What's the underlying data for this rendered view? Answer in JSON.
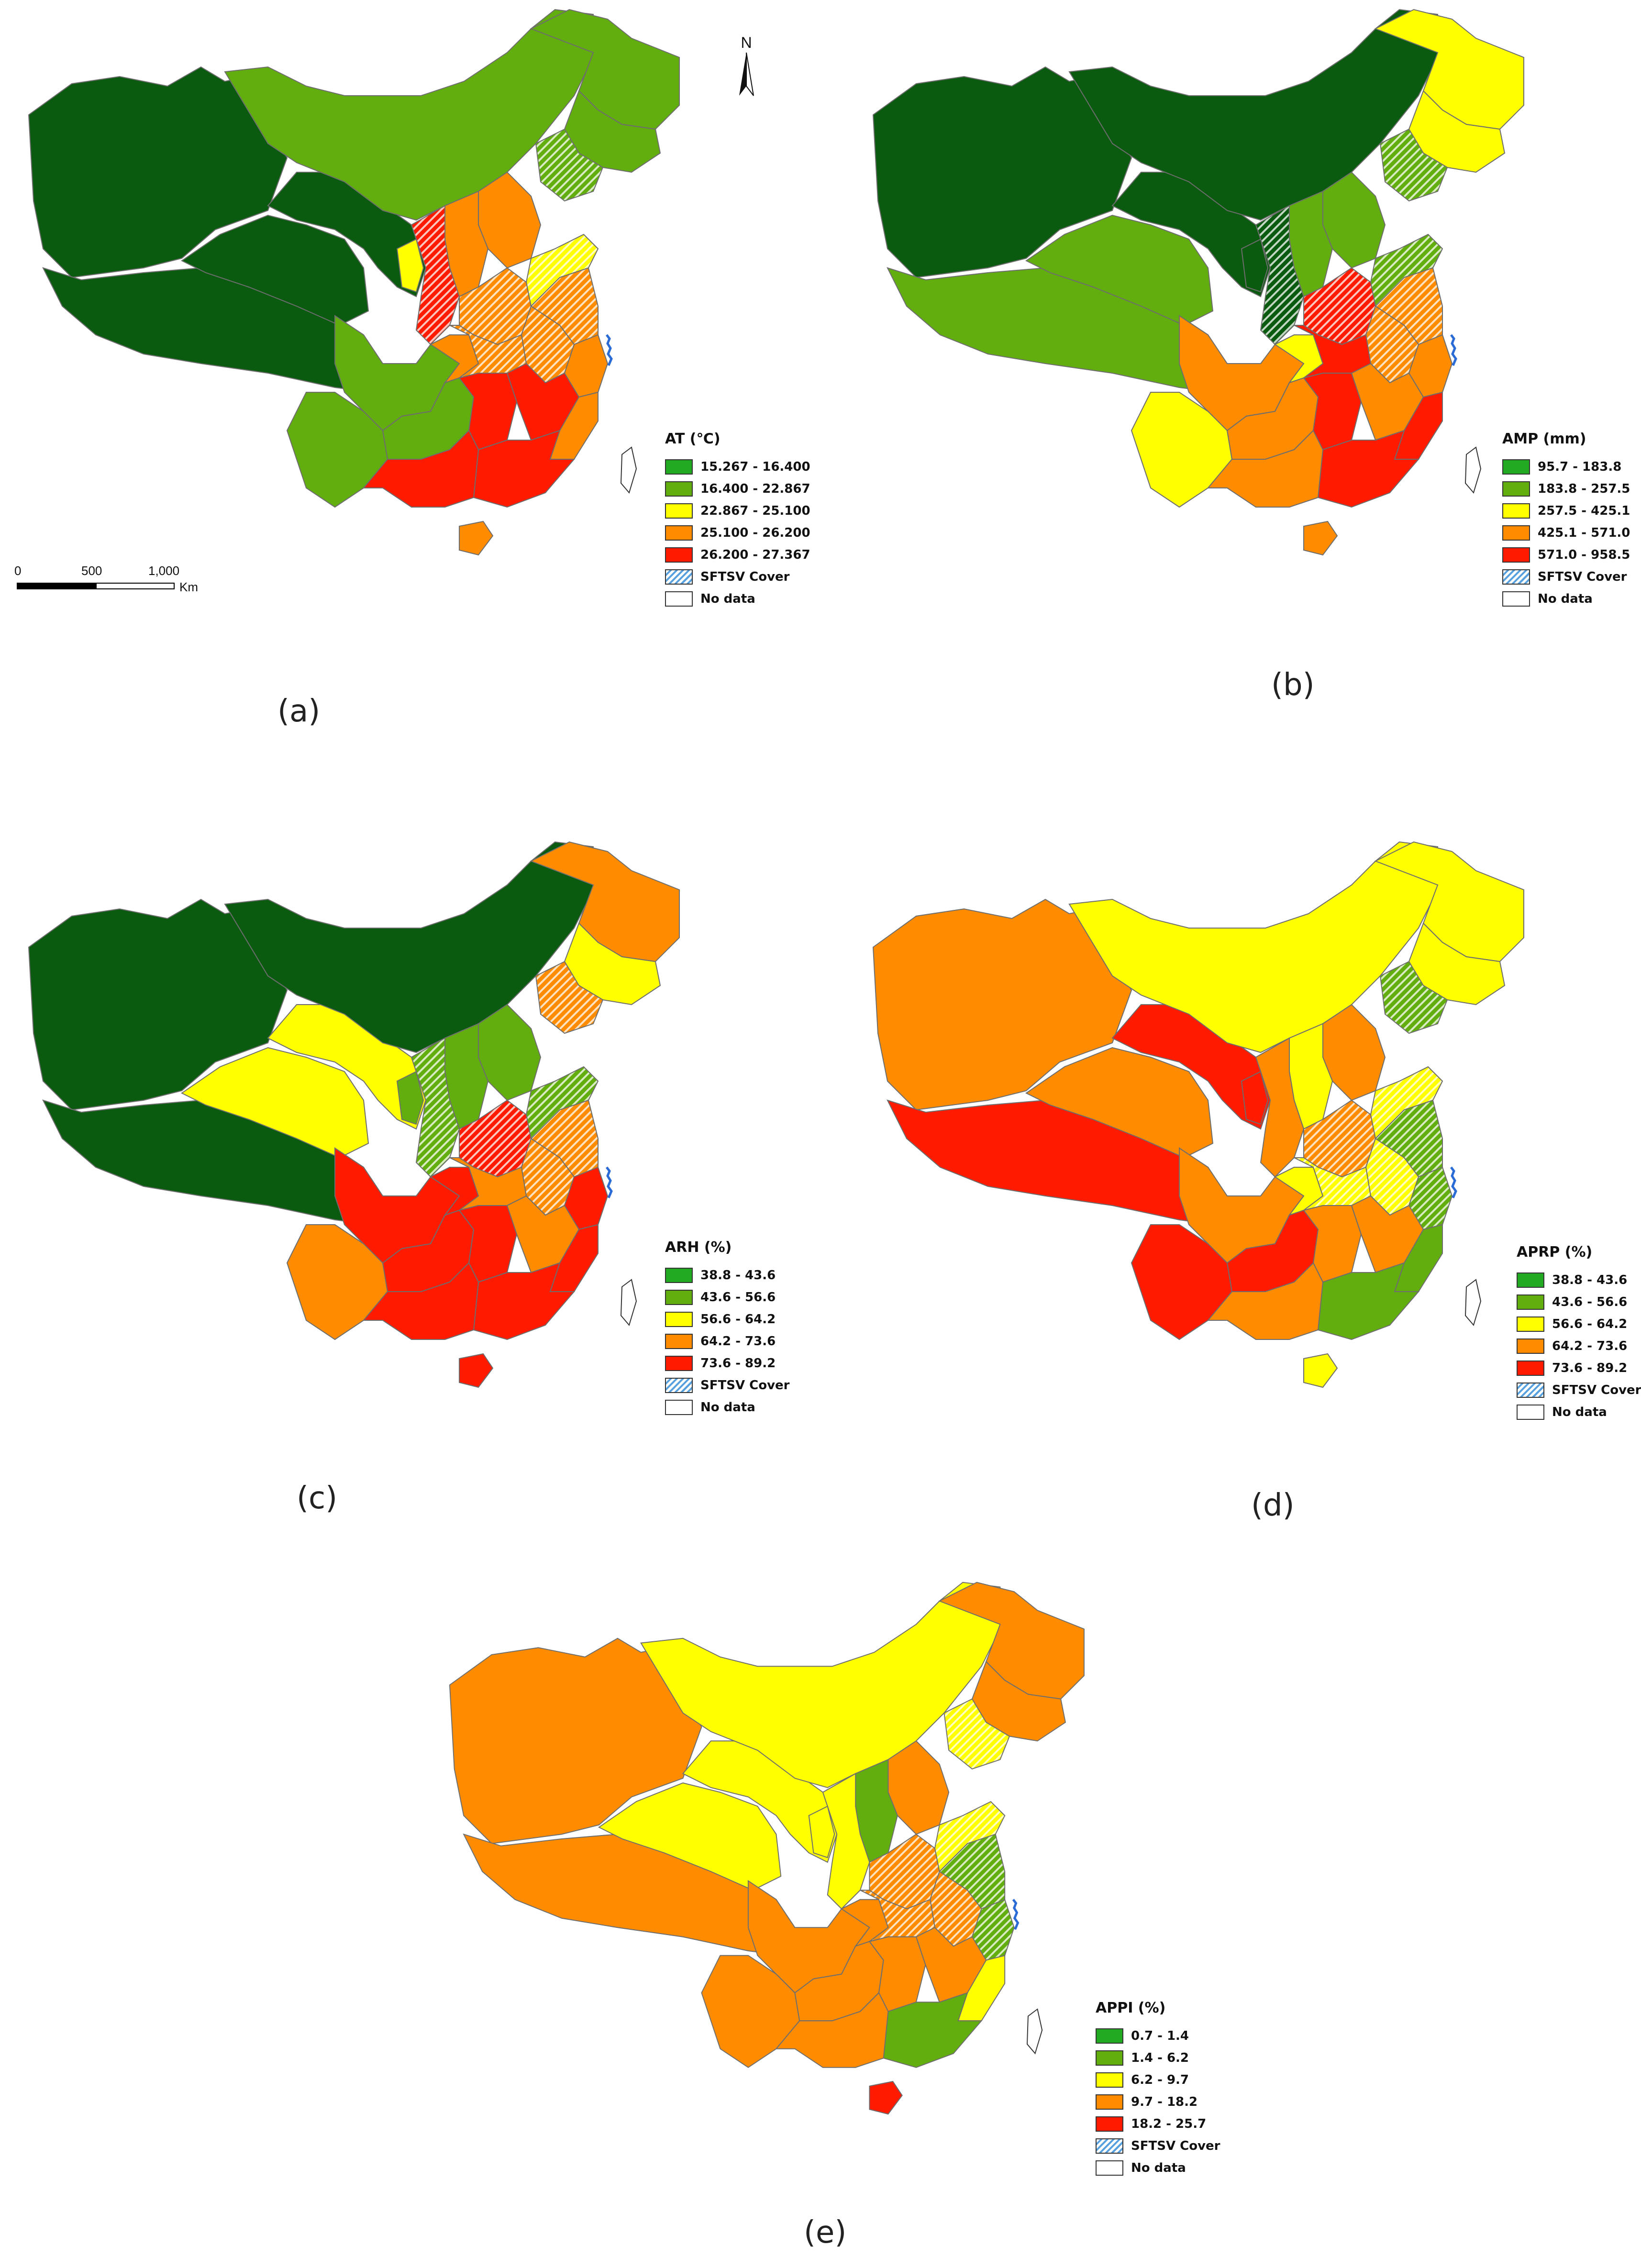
{
  "colors": {
    "dark_green": "#0a5a10",
    "green": "#63ae0f",
    "bright_green": "#22aa22",
    "yellow": "#ffff00",
    "orange": "#ff8c00",
    "red": "#ff1a00",
    "hatch_blue": "#56a0e0",
    "island_blue": "#2b6bd6"
  },
  "north_arrow": {
    "label": "N"
  },
  "scale_bar": {
    "ticks": [
      "0",
      "500",
      "1,000"
    ],
    "unit": "Km"
  },
  "panels": [
    {
      "id": "a",
      "label": "(a)",
      "legend": {
        "title": "AT (℃)",
        "items": [
          {
            "label": "15.267 - 16.400",
            "color": "#22aa22"
          },
          {
            "label": "16.400 - 22.867",
            "color": "#63ae0f"
          },
          {
            "label": "22.867 - 25.100",
            "color": "#ffff00"
          },
          {
            "label": "25.100 - 26.200",
            "color": "#ff8c00"
          },
          {
            "label": "26.200 - 27.367",
            "color": "#ff1a00"
          },
          {
            "label": "SFTSV Cover",
            "color": "hatch"
          },
          {
            "label": "No data",
            "color": "none"
          }
        ]
      }
    },
    {
      "id": "b",
      "label": "(b)",
      "legend": {
        "title": "AMP (mm)",
        "items": [
          {
            "label": "95.7 - 183.8",
            "color": "#22aa22"
          },
          {
            "label": "183.8 - 257.5",
            "color": "#63ae0f"
          },
          {
            "label": "257.5 - 425.1",
            "color": "#ffff00"
          },
          {
            "label": "425.1 - 571.0",
            "color": "#ff8c00"
          },
          {
            "label": "571.0 - 958.5",
            "color": "#ff1a00"
          },
          {
            "label": "SFTSV Cover",
            "color": "hatch"
          },
          {
            "label": "No data",
            "color": "none"
          }
        ]
      }
    },
    {
      "id": "c",
      "label": "(c)",
      "legend": {
        "title": "ARH (%)",
        "items": [
          {
            "label": "38.8 - 43.6",
            "color": "#22aa22"
          },
          {
            "label": "43.6 - 56.6",
            "color": "#63ae0f"
          },
          {
            "label": "56.6 - 64.2",
            "color": "#ffff00"
          },
          {
            "label": "64.2 - 73.6",
            "color": "#ff8c00"
          },
          {
            "label": "73.6 - 89.2",
            "color": "#ff1a00"
          },
          {
            "label": "SFTSV Cover",
            "color": "hatch"
          },
          {
            "label": "No data",
            "color": "none"
          }
        ]
      }
    },
    {
      "id": "d",
      "label": "(d)",
      "legend": {
        "title": "APRP (%)",
        "items": [
          {
            "label": "38.8 - 43.6",
            "color": "#22aa22"
          },
          {
            "label": "43.6 - 56.6",
            "color": "#63ae0f"
          },
          {
            "label": "56.6 - 64.2",
            "color": "#ffff00"
          },
          {
            "label": "64.2 - 73.6",
            "color": "#ff8c00"
          },
          {
            "label": "73.6 - 89.2",
            "color": "#ff1a00"
          },
          {
            "label": "SFTSV Cover",
            "color": "hatch"
          },
          {
            "label": "No data",
            "color": "none"
          }
        ]
      }
    },
    {
      "id": "e",
      "label": "(e)",
      "legend": {
        "title": "APPI (%)",
        "items": [
          {
            "label": "0.7 - 1.4",
            "color": "#22aa22"
          },
          {
            "label": "1.4 - 6.2",
            "color": "#63ae0f"
          },
          {
            "label": "6.2 - 9.7",
            "color": "#ffff00"
          },
          {
            "label": "9.7 - 18.2",
            "color": "#ff8c00"
          },
          {
            "label": "18.2 - 25.7",
            "color": "#ff1a00"
          },
          {
            "label": "SFTSV Cover",
            "color": "hatch"
          },
          {
            "label": "No data",
            "color": "none"
          }
        ]
      }
    }
  ],
  "region_values": {
    "a": {
      "xinjiang": "dark_green",
      "tibet": "dark_green",
      "qinghai": "dark_green",
      "gansu": "dark_green",
      "nei_mongol": "green",
      "heilongjiang": "green",
      "jilin": "green",
      "liaoning": "hatch_green",
      "hebei": "orange",
      "shanxi": "orange",
      "shaanxi": "hatch_red",
      "ningxia": "yellow",
      "sichuan": "green",
      "chongqing": "orange",
      "yunnan": "green",
      "guizhou": "green",
      "henan": "hatch_orange",
      "shandong": "hatch_yellow",
      "jiangsu": "hatch_orange",
      "anhui": "hatch_orange",
      "hubei": "hatch_orange",
      "hunan": "red",
      "jiangxi": "red",
      "zhejiang": "orange",
      "fujian": "orange",
      "guangdong": "red",
      "guangxi": "red",
      "hainan": "orange"
    },
    "b": {
      "xinjiang": "dark_green",
      "tibet": "green",
      "qinghai": "green",
      "gansu": "dark_green",
      "nei_mongol": "dark_green",
      "heilongjiang": "yellow",
      "jilin": "yellow",
      "liaoning": "hatch_green",
      "hebei": "green",
      "shanxi": "green",
      "shaanxi": "hatch_dark",
      "ningxia": "dark_green",
      "sichuan": "orange",
      "chongqing": "yellow",
      "yunnan": "yellow",
      "guizhou": "orange",
      "henan": "hatch_red",
      "shandong": "hatch_green",
      "jiangsu": "hatch_orange",
      "anhui": "hatch_orange",
      "hubei": "red",
      "hunan": "red",
      "jiangxi": "orange",
      "zhejiang": "orange",
      "fujian": "red",
      "guangdong": "red",
      "guangxi": "orange",
      "hainan": "orange"
    },
    "c": {
      "xinjiang": "dark_green",
      "tibet": "dark_green",
      "qinghai": "yellow",
      "gansu": "yellow",
      "nei_mongol": "dark_green",
      "heilongjiang": "orange",
      "jilin": "yellow",
      "liaoning": "hatch_orange",
      "hebei": "green",
      "shanxi": "green",
      "shaanxi": "hatch_green",
      "ningxia": "green",
      "sichuan": "red",
      "chongqing": "red",
      "yunnan": "orange",
      "guizhou": "red",
      "henan": "hatch_red",
      "shandong": "hatch_green",
      "jiangsu": "hatch_orange",
      "anhui": "hatch_orange",
      "hubei": "orange",
      "hunan": "red",
      "jiangxi": "orange",
      "zhejiang": "red",
      "fujian": "red",
      "guangdong": "red",
      "guangxi": "red",
      "hainan": "red"
    },
    "d": {
      "xinjiang": "orange",
      "tibet": "red",
      "qinghai": "orange",
      "gansu": "red",
      "nei_mongol": "yellow",
      "heilongjiang": "yellow",
      "jilin": "yellow",
      "liaoning": "hatch_green",
      "hebei": "orange",
      "shanxi": "yellow",
      "shaanxi": "orange",
      "ningxia": "red",
      "sichuan": "orange",
      "chongqing": "yellow",
      "yunnan": "red",
      "guizhou": "red",
      "henan": "hatch_orange",
      "shandong": "hatch_yellow",
      "jiangsu": "hatch_green",
      "anhui": "hatch_yellow",
      "hubei": "hatch_yellow",
      "hunan": "orange",
      "jiangxi": "orange",
      "zhejiang": "hatch_green",
      "fujian": "green",
      "guangdong": "green",
      "guangxi": "orange",
      "hainan": "yellow"
    },
    "e": {
      "xinjiang": "orange",
      "tibet": "orange",
      "qinghai": "yellow",
      "gansu": "yellow",
      "nei_mongol": "yellow",
      "heilongjiang": "orange",
      "jilin": "orange",
      "liaoning": "hatch_yellow",
      "hebei": "orange",
      "shanxi": "green",
      "shaanxi": "yellow",
      "ningxia": "yellow",
      "sichuan": "orange",
      "chongqing": "orange",
      "yunnan": "orange",
      "guizhou": "orange",
      "henan": "hatch_orange",
      "shandong": "hatch_yellow",
      "jiangsu": "hatch_green",
      "anhui": "hatch_orange",
      "hubei": "hatch_orange",
      "hunan": "orange",
      "jiangxi": "orange",
      "zhejiang": "hatch_green",
      "fujian": "yellow",
      "guangdong": "green",
      "guangxi": "orange",
      "hainan": "red"
    }
  }
}
